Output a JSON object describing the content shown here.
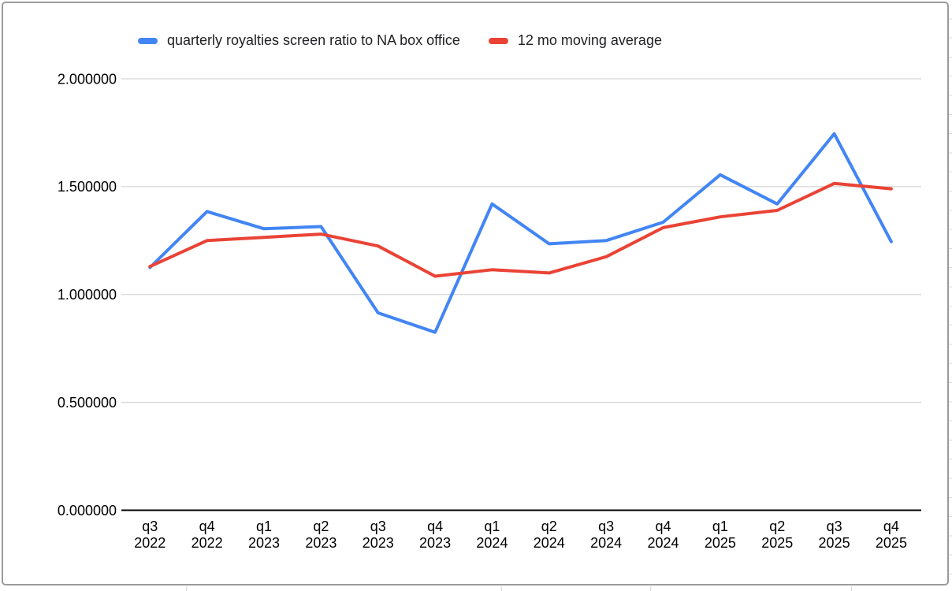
{
  "chart_data": {
    "type": "line",
    "title": "",
    "xlabel": "",
    "ylabel": "",
    "ylim": [
      0,
      2
    ],
    "y_tick_step": 0.5,
    "grid": true,
    "legend_position": "top",
    "categories": [
      "q3 2022",
      "q4 2022",
      "q1 2023",
      "q2 2023",
      "q3 2023",
      "q4 2023",
      "q1 2024",
      "q2 2024",
      "q3 2024",
      "q4 2024",
      "q1 2025",
      "q2 2025",
      "q3 2025",
      "q4 2025"
    ],
    "y_ticks": [
      {
        "label": "2.000000",
        "value": 2.0
      },
      {
        "label": "1.500000",
        "value": 1.5
      },
      {
        "label": "1.000000",
        "value": 1.0
      },
      {
        "label": "0.500000",
        "value": 0.5
      },
      {
        "label": "0.000000",
        "value": 0.0
      }
    ],
    "series": [
      {
        "name": "quarterly royalties screen ratio to NA box office",
        "color": "#4285F4",
        "values": [
          1.125,
          1.385,
          1.305,
          1.315,
          0.915,
          0.825,
          1.42,
          1.235,
          1.25,
          1.335,
          1.555,
          1.42,
          1.745,
          1.245
        ]
      },
      {
        "name": "12 mo moving average",
        "color": "#EA4335",
        "values": [
          1.13,
          1.25,
          1.265,
          1.28,
          1.225,
          1.085,
          1.115,
          1.1,
          1.175,
          1.31,
          1.36,
          1.39,
          1.515,
          1.49
        ]
      }
    ],
    "colors": {
      "series1": "#4285F4",
      "series2": "#EA4335",
      "gridline": "#cccccc",
      "axis_line": "#000000",
      "text": "#000000"
    }
  }
}
